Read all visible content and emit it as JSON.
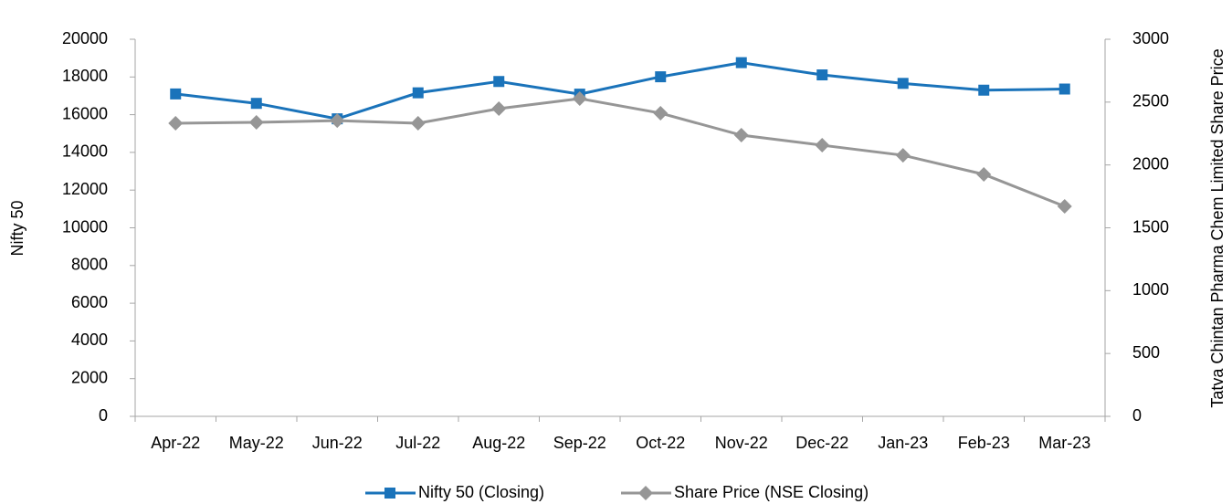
{
  "chart_data": {
    "type": "line",
    "categories": [
      "Apr-22",
      "May-22",
      "Jun-22",
      "Jul-22",
      "Aug-22",
      "Sep-22",
      "Oct-22",
      "Nov-22",
      "Dec-22",
      "Jan-23",
      "Feb-23",
      "Mar-23"
    ],
    "series": [
      {
        "name": "Nifty 50 (Closing)",
        "color": "#1a73ba",
        "marker": "square",
        "values": [
          17100,
          16600,
          15780,
          17160,
          17760,
          17090,
          18010,
          18760,
          18110,
          17660,
          17300,
          17360
        ]
      },
      {
        "name": "Share Price (NSE Closing)",
        "color": "#969696",
        "marker": "diamond",
        "axis": "y2",
        "values": [
          2332,
          2339,
          2353,
          2332,
          2448,
          2528,
          2412,
          2237,
          2157,
          2077,
          1925,
          1671
        ]
      }
    ],
    "ylabel": "Nifty 50",
    "y2label": "Tatva Chintan Pharma Chem Limited Share Price",
    "ylim": [
      0,
      20000
    ],
    "yticks": [
      0,
      2000,
      4000,
      6000,
      8000,
      10000,
      12000,
      14000,
      16000,
      18000,
      20000
    ],
    "y2lim": [
      0,
      3000
    ],
    "y2ticks": [
      0,
      500,
      1000,
      1500,
      2000,
      2500,
      3000
    ],
    "legend": "bottom"
  }
}
